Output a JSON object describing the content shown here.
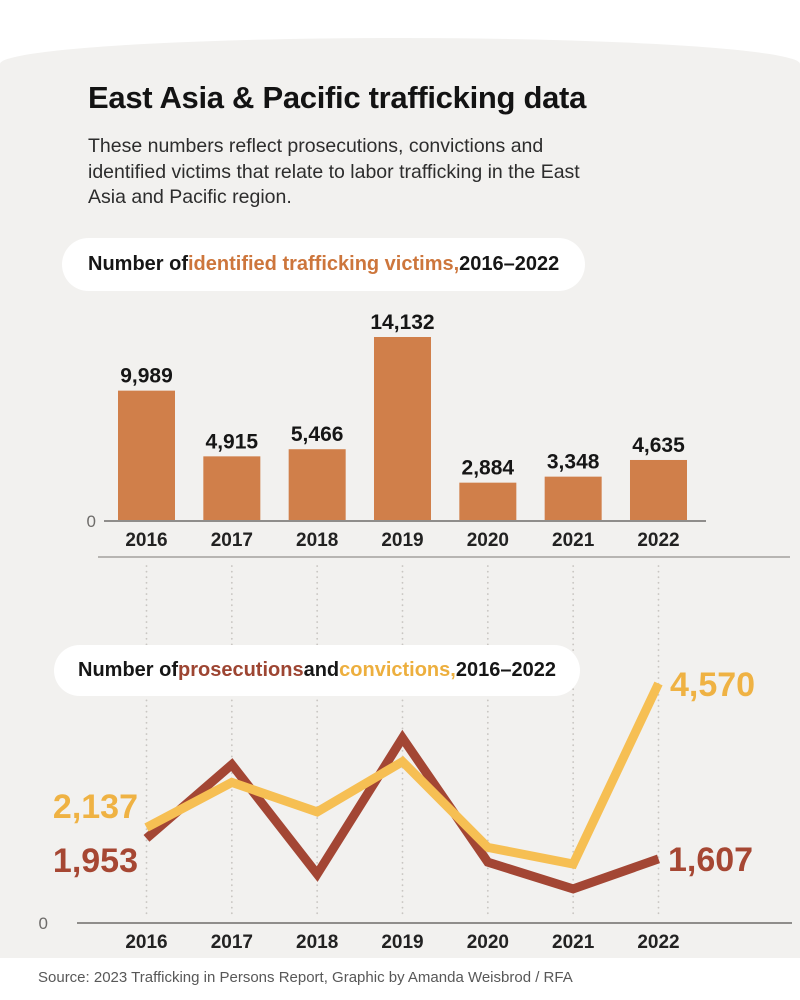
{
  "header": {
    "title": "East Asia & Pacific trafficking data",
    "subtitle": "These numbers reflect prosecutions, convictions and identified victims that relate to labor trafficking in the East Asia and Pacific region."
  },
  "chart1_title": {
    "prefix": "Number of ",
    "highlight": "identified trafficking victims,",
    "suffix": " 2016–2022"
  },
  "chart2_title": {
    "prefix": "Number of ",
    "series1": "prosecutions",
    "mid": " and ",
    "series2": "convictions,",
    "suffix": " 2016–2022"
  },
  "footer": {
    "source": "Source: 2023 Trafficking in Persons Report, Graphic by Amanda Weisbrod / RFA"
  },
  "colors": {
    "panel_bg": "#f2f1ef",
    "bar_orange": "#d07f4a",
    "prosecutions_red": "#a34634",
    "convictions_gold": "#f6bf53",
    "axis_gray": "#8f8d8b",
    "dotted_gray": "#c9c6c2"
  },
  "chart_data": [
    {
      "type": "bar",
      "title": "Number of identified trafficking victims, 2016–2022",
      "categories": [
        "2016",
        "2017",
        "2018",
        "2019",
        "2020",
        "2021",
        "2022"
      ],
      "values": [
        9989,
        4915,
        5466,
        14132,
        2884,
        3348,
        4635
      ],
      "value_labels": [
        "9,989",
        "4,915",
        "5,466",
        "14,132",
        "2,884",
        "3,348",
        "4,635"
      ],
      "color": "#d07f4a",
      "xlabel": "",
      "ylabel": "",
      "ylim": [
        0,
        14132
      ],
      "yzero_label": "0",
      "grid": false,
      "legend": "none"
    },
    {
      "type": "line",
      "title": "Number of prosecutions and convictions, 2016–2022",
      "categories": [
        "2016",
        "2017",
        "2018",
        "2019",
        "2020",
        "2021",
        "2022"
      ],
      "series": [
        {
          "name": "prosecutions",
          "color": "#a34634",
          "values": [
            1953,
            3200,
            1350,
            3650,
            1550,
            1100,
            1607
          ],
          "first_label": "1,953",
          "last_label": "1,607"
        },
        {
          "name": "convictions",
          "color": "#f6bf53",
          "values": [
            2137,
            2900,
            2400,
            3250,
            1800,
            1520,
            4570
          ],
          "first_label": "2,137",
          "last_label": "4,570"
        }
      ],
      "xlabel": "",
      "ylabel": "",
      "yzero_label": "0",
      "grid": "dotted-vertical",
      "legend": "inline-title",
      "note": "Only 2016 and 2022 values are labeled in the graphic; intermediate values are estimated from line positions."
    }
  ]
}
